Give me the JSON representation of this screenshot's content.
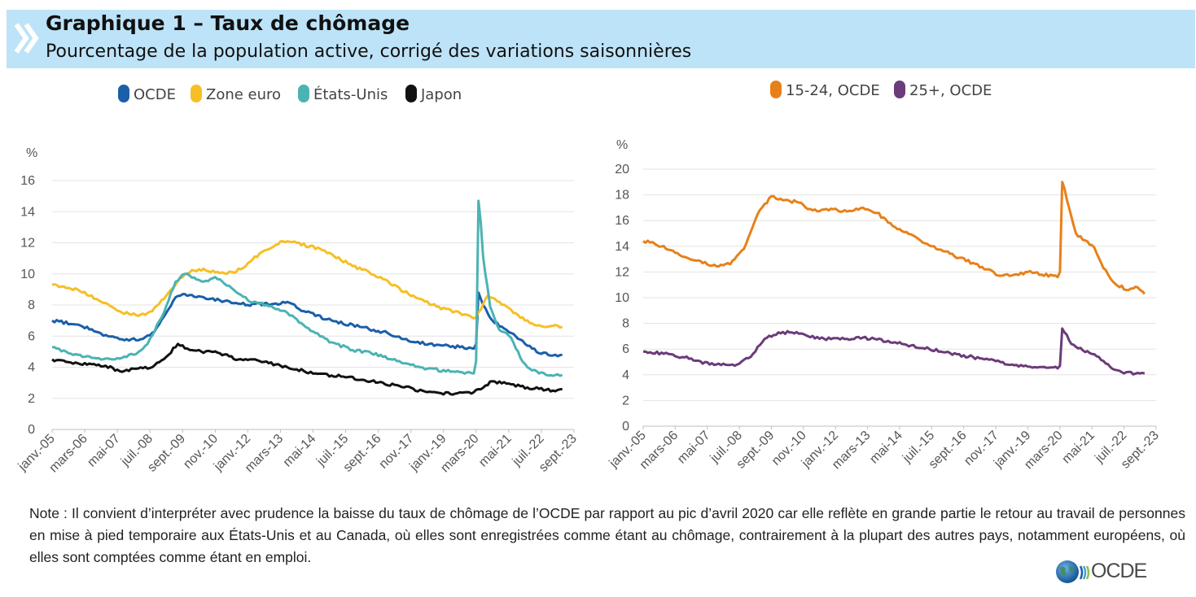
{
  "header": {
    "title": "Graphique 1 – Taux de chômage",
    "subtitle": "Pourcentage de la population active, corrigé des variations saisonnières"
  },
  "note": "Note : Il convient d’interpréter avec prudence la baisse du taux de chômage de l’OCDE par rapport au pic d’avril 2020 car elle reflète en grande partie le retour au travail de personnes en mise à pied temporaire aux États-Unis et au Canada, où elles sont enregistrées comme étant au chômage, contrairement à la plupart des autres pays, notamment européens, où elles sont comptées comme étant en emploi.",
  "logo": {
    "text": "OCDE"
  },
  "chart_data": [
    {
      "type": "line",
      "unit_label": "%",
      "ylim": [
        0,
        16
      ],
      "yticks": [
        0,
        2,
        4,
        6,
        8,
        10,
        12,
        14,
        16
      ],
      "xlim": [
        "2005-01",
        "2023-09"
      ],
      "xticks": [
        "janv.-05",
        "mars-06",
        "mai-07",
        "juil.-08",
        "sept.-09",
        "nov.-10",
        "janv.-12",
        "mars-13",
        "mai-14",
        "juil.-15",
        "sept.-16",
        "nov.-17",
        "janv.-19",
        "mars-20",
        "mai-21",
        "juil.-22",
        "sept.-23"
      ],
      "grid": true,
      "legend_position": "top",
      "series": [
        {
          "name": "OCDE",
          "color": "#1a5fa8",
          "points": [
            [
              "2005-01",
              7.0
            ],
            [
              "2006-01",
              6.7
            ],
            [
              "2007-01",
              6.0
            ],
            [
              "2007-06",
              5.8
            ],
            [
              "2008-03",
              5.8
            ],
            [
              "2008-09",
              6.3
            ],
            [
              "2009-02",
              7.5
            ],
            [
              "2009-06",
              8.5
            ],
            [
              "2009-10",
              8.7
            ],
            [
              "2010-06",
              8.5
            ],
            [
              "2011-01",
              8.3
            ],
            [
              "2012-01",
              8.0
            ],
            [
              "2013-01",
              8.1
            ],
            [
              "2013-06",
              8.2
            ],
            [
              "2014-01",
              7.6
            ],
            [
              "2015-01",
              7.0
            ],
            [
              "2016-01",
              6.6
            ],
            [
              "2017-01",
              6.2
            ],
            [
              "2018-01",
              5.6
            ],
            [
              "2019-01",
              5.4
            ],
            [
              "2020-02",
              5.2
            ],
            [
              "2020-03",
              5.5
            ],
            [
              "2020-04",
              8.8
            ],
            [
              "2020-05",
              8.4
            ],
            [
              "2020-06",
              8.0
            ],
            [
              "2020-10",
              7.0
            ],
            [
              "2021-06",
              6.2
            ],
            [
              "2021-12",
              5.5
            ],
            [
              "2022-06",
              4.9
            ],
            [
              "2023-01",
              4.8
            ],
            [
              "2023-04",
              4.8
            ]
          ]
        },
        {
          "name": "Zone euro",
          "color": "#f6bf26",
          "points": [
            [
              "2005-01",
              9.3
            ],
            [
              "2005-12",
              9.0
            ],
            [
              "2006-09",
              8.3
            ],
            [
              "2007-06",
              7.6
            ],
            [
              "2008-02",
              7.3
            ],
            [
              "2008-08",
              7.6
            ],
            [
              "2009-03",
              8.8
            ],
            [
              "2009-10",
              10.0
            ],
            [
              "2010-04",
              10.3
            ],
            [
              "2011-04",
              10.0
            ],
            [
              "2011-10",
              10.3
            ],
            [
              "2012-06",
              11.3
            ],
            [
              "2013-04",
              12.1
            ],
            [
              "2013-10",
              12.0
            ],
            [
              "2014-10",
              11.5
            ],
            [
              "2015-10",
              10.5
            ],
            [
              "2016-10",
              9.8
            ],
            [
              "2017-10",
              8.7
            ],
            [
              "2018-10",
              7.9
            ],
            [
              "2019-10",
              7.4
            ],
            [
              "2020-03",
              7.2
            ],
            [
              "2020-08",
              8.6
            ],
            [
              "2021-01",
              8.2
            ],
            [
              "2021-06",
              7.7
            ],
            [
              "2021-12",
              7.0
            ],
            [
              "2022-06",
              6.7
            ],
            [
              "2023-04",
              6.6
            ]
          ]
        },
        {
          "name": "États-Unis",
          "color": "#4bb3b3",
          "points": [
            [
              "2005-01",
              5.3
            ],
            [
              "2005-08",
              4.9
            ],
            [
              "2006-06",
              4.6
            ],
            [
              "2007-03",
              4.5
            ],
            [
              "2007-12",
              4.8
            ],
            [
              "2008-06",
              5.5
            ],
            [
              "2008-12",
              7.2
            ],
            [
              "2009-06",
              9.5
            ],
            [
              "2009-10",
              10.0
            ],
            [
              "2010-06",
              9.5
            ],
            [
              "2010-11",
              9.8
            ],
            [
              "2011-06",
              9.1
            ],
            [
              "2012-01",
              8.3
            ],
            [
              "2012-09",
              8.0
            ],
            [
              "2013-06",
              7.5
            ],
            [
              "2014-01",
              6.7
            ],
            [
              "2014-06",
              6.2
            ],
            [
              "2015-01",
              5.6
            ],
            [
              "2015-10",
              5.1
            ],
            [
              "2016-06",
              4.9
            ],
            [
              "2017-06",
              4.4
            ],
            [
              "2018-06",
              3.9
            ],
            [
              "2019-06",
              3.7
            ],
            [
              "2020-02",
              3.6
            ],
            [
              "2020-03",
              4.4
            ],
            [
              "2020-04",
              14.7
            ],
            [
              "2020-05",
              13.3
            ],
            [
              "2020-06",
              11.1
            ],
            [
              "2020-09",
              7.9
            ],
            [
              "2021-01",
              6.4
            ],
            [
              "2021-06",
              5.9
            ],
            [
              "2021-10",
              4.6
            ],
            [
              "2022-01",
              4.0
            ],
            [
              "2022-06",
              3.6
            ],
            [
              "2023-01",
              3.5
            ],
            [
              "2023-04",
              3.5
            ]
          ]
        },
        {
          "name": "Japon",
          "color": "#111111",
          "points": [
            [
              "2005-01",
              4.5
            ],
            [
              "2006-01",
              4.2
            ],
            [
              "2006-12",
              4.1
            ],
            [
              "2007-07",
              3.7
            ],
            [
              "2008-01",
              3.9
            ],
            [
              "2008-08",
              4.0
            ],
            [
              "2009-03",
              4.8
            ],
            [
              "2009-07",
              5.5
            ],
            [
              "2010-01",
              5.1
            ],
            [
              "2011-01",
              4.9
            ],
            [
              "2011-09",
              4.5
            ],
            [
              "2012-06",
              4.4
            ],
            [
              "2013-06",
              4.0
            ],
            [
              "2014-06",
              3.6
            ],
            [
              "2015-06",
              3.4
            ],
            [
              "2016-06",
              3.1
            ],
            [
              "2017-06",
              2.8
            ],
            [
              "2018-06",
              2.4
            ],
            [
              "2019-06",
              2.3
            ],
            [
              "2020-02",
              2.4
            ],
            [
              "2020-10",
              3.1
            ],
            [
              "2021-06",
              2.9
            ],
            [
              "2022-01",
              2.7
            ],
            [
              "2022-12",
              2.5
            ],
            [
              "2023-04",
              2.6
            ]
          ]
        }
      ]
    },
    {
      "type": "line",
      "unit_label": "%",
      "ylim": [
        0,
        20
      ],
      "yticks": [
        0,
        2,
        4,
        6,
        8,
        10,
        12,
        14,
        16,
        18,
        20
      ],
      "xlim": [
        "2005-01",
        "2023-09"
      ],
      "xticks": [
        "janv.-05",
        "mars-06",
        "mai-07",
        "juil.-08",
        "sept.-09",
        "nov.-10",
        "janv.-12",
        "mars-13",
        "mai-14",
        "juil.-15",
        "sept.-16",
        "nov.-17",
        "janv.-19",
        "mars-20",
        "mai-21",
        "juil.-22",
        "sept.-23"
      ],
      "grid": true,
      "legend_position": "top",
      "series": [
        {
          "name": "15-24, OCDE",
          "color": "#e8801a",
          "points": [
            [
              "2005-01",
              14.4
            ],
            [
              "2005-06",
              14.2
            ],
            [
              "2006-01",
              13.7
            ],
            [
              "2006-06",
              13.2
            ],
            [
              "2007-01",
              12.9
            ],
            [
              "2007-06",
              12.5
            ],
            [
              "2008-03",
              12.6
            ],
            [
              "2008-09",
              13.8
            ],
            [
              "2009-03",
              16.5
            ],
            [
              "2009-09",
              17.9
            ],
            [
              "2010-03",
              17.6
            ],
            [
              "2010-09",
              17.4
            ],
            [
              "2011-03",
              16.8
            ],
            [
              "2011-09",
              16.9
            ],
            [
              "2012-06",
              16.7
            ],
            [
              "2013-01",
              17.0
            ],
            [
              "2013-07",
              16.6
            ],
            [
              "2014-01",
              15.8
            ],
            [
              "2014-07",
              15.1
            ],
            [
              "2015-01",
              14.6
            ],
            [
              "2015-07",
              14.0
            ],
            [
              "2016-01",
              13.6
            ],
            [
              "2016-07",
              13.1
            ],
            [
              "2017-01",
              12.7
            ],
            [
              "2017-07",
              12.2
            ],
            [
              "2018-01",
              11.7
            ],
            [
              "2018-07",
              11.8
            ],
            [
              "2019-01",
              12.0
            ],
            [
              "2019-07",
              11.8
            ],
            [
              "2020-02",
              11.6
            ],
            [
              "2020-03",
              12.0
            ],
            [
              "2020-04",
              19.0
            ],
            [
              "2020-05",
              18.5
            ],
            [
              "2020-07",
              17.0
            ],
            [
              "2020-10",
              15.0
            ],
            [
              "2021-01",
              14.5
            ],
            [
              "2021-06",
              13.9
            ],
            [
              "2021-10",
              12.3
            ],
            [
              "2022-03",
              11.1
            ],
            [
              "2022-09",
              10.6
            ],
            [
              "2023-01",
              10.8
            ],
            [
              "2023-04",
              10.3
            ]
          ]
        },
        {
          "name": "25+, OCDE",
          "color": "#6b3b7a",
          "points": [
            [
              "2005-01",
              5.8
            ],
            [
              "2006-01",
              5.6
            ],
            [
              "2007-01",
              5.1
            ],
            [
              "2007-06",
              4.8
            ],
            [
              "2008-06",
              4.8
            ],
            [
              "2008-12",
              5.4
            ],
            [
              "2009-06",
              6.8
            ],
            [
              "2009-12",
              7.3
            ],
            [
              "2010-06",
              7.3
            ],
            [
              "2011-01",
              7.0
            ],
            [
              "2011-06",
              6.8
            ],
            [
              "2012-06",
              6.8
            ],
            [
              "2013-01",
              6.9
            ],
            [
              "2013-06",
              6.8
            ],
            [
              "2014-06",
              6.4
            ],
            [
              "2015-06",
              6.0
            ],
            [
              "2016-06",
              5.6
            ],
            [
              "2017-06",
              5.2
            ],
            [
              "2018-06",
              4.8
            ],
            [
              "2019-06",
              4.6
            ],
            [
              "2020-02",
              4.5
            ],
            [
              "2020-03",
              4.7
            ],
            [
              "2020-04",
              7.6
            ],
            [
              "2020-05",
              7.3
            ],
            [
              "2020-08",
              6.4
            ],
            [
              "2021-01",
              5.9
            ],
            [
              "2021-06",
              5.6
            ],
            [
              "2022-01",
              4.6
            ],
            [
              "2022-06",
              4.2
            ],
            [
              "2023-04",
              4.1
            ]
          ]
        }
      ]
    }
  ]
}
